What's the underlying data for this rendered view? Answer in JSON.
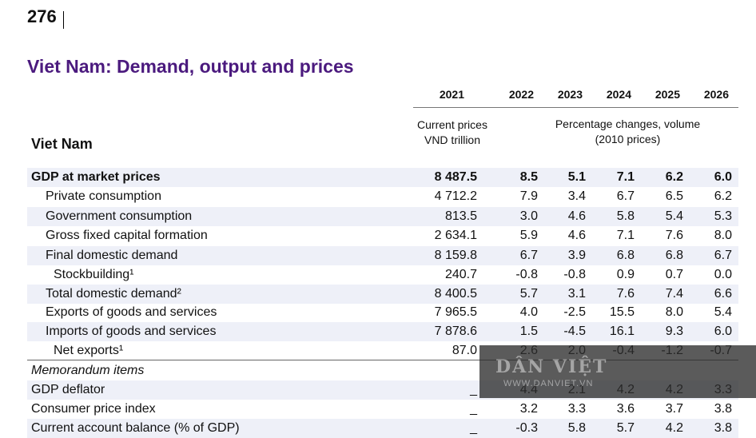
{
  "page_number": "276",
  "title": "Viet Nam: Demand, output and prices",
  "header": {
    "years": [
      "2021",
      "2022",
      "2023",
      "2024",
      "2025",
      "2026"
    ],
    "country": "Viet Nam",
    "current_prices_line1": "Current prices",
    "current_prices_line2": "VND trillion",
    "pct_line1": "Percentage changes, volume",
    "pct_line2": "(2010 prices)"
  },
  "rows": [
    {
      "label": "GDP at market prices",
      "values": [
        "8 487.5",
        "8.5",
        "5.1",
        "7.1",
        "6.2",
        "6.0"
      ]
    },
    {
      "label": "Private consumption",
      "values": [
        "4 712.2",
        "7.9",
        "3.4",
        "6.7",
        "6.5",
        "6.2"
      ]
    },
    {
      "label": "Government consumption",
      "values": [
        "813.5",
        "3.0",
        "4.6",
        "5.8",
        "5.4",
        "5.3"
      ]
    },
    {
      "label": "Gross fixed capital formation",
      "values": [
        "2 634.1",
        "5.9",
        "4.6",
        "7.1",
        "7.6",
        "8.0"
      ]
    },
    {
      "label": "Final domestic demand",
      "values": [
        "8 159.8",
        "6.7",
        "3.9",
        "6.8",
        "6.8",
        "6.7"
      ]
    },
    {
      "label": "Stockbuilding¹",
      "values": [
        "240.7",
        "-0.8",
        "-0.8",
        "0.9",
        "0.7",
        "0.0"
      ]
    },
    {
      "label": "Total domestic demand²",
      "values": [
        "8 400.5",
        "5.7",
        "3.1",
        "7.6",
        "7.4",
        "6.6"
      ]
    },
    {
      "label": "Exports of goods and services",
      "values": [
        "7 965.5",
        "4.0",
        "-2.5",
        "15.5",
        "8.0",
        "5.4"
      ]
    },
    {
      "label": "Imports of goods and services",
      "values": [
        "7 878.6",
        "1.5",
        "-4.5",
        "16.1",
        "9.3",
        "6.0"
      ]
    },
    {
      "label": "Net exports¹",
      "values": [
        "87.0",
        "2.6",
        "2.0",
        "-0.4",
        "-1.2",
        "-0.7"
      ]
    },
    {
      "label": "Memorandum items",
      "values": [
        "",
        "",
        "",
        "",
        "",
        ""
      ]
    },
    {
      "label": "GDP deflator",
      "values": [
        "_",
        "4.4",
        "2.1",
        "4.2",
        "4.2",
        "3.3"
      ]
    },
    {
      "label": "Consumer price index",
      "values": [
        "_",
        "3.2",
        "3.3",
        "3.6",
        "3.7",
        "3.8"
      ]
    },
    {
      "label": "Current account balance (% of GDP)",
      "values": [
        "_",
        "-0.3",
        "5.8",
        "5.7",
        "4.2",
        "3.8"
      ]
    }
  ],
  "watermark": {
    "main": "DÂN VIỆT",
    "sub": "WWW.DANVIET.VN"
  }
}
